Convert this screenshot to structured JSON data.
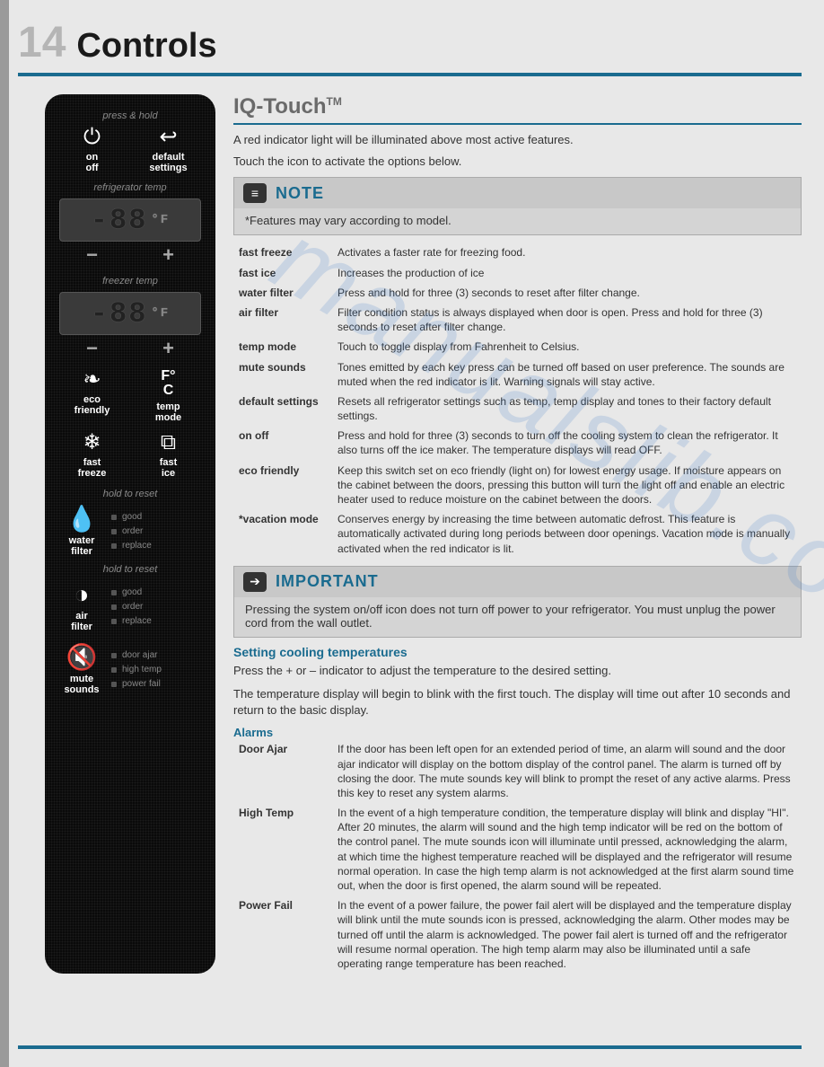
{
  "page": {
    "number": "14",
    "title": "Controls"
  },
  "watermark": "manualslib.com",
  "panel": {
    "press_hold": "press & hold",
    "on_off": "on\noff",
    "default_settings": "default\nsettings",
    "refrig_temp": "refrigerator temp",
    "freezer_temp": "freezer temp",
    "display_value": "-88",
    "display_unit": "°F",
    "eco": "eco\nfriendly",
    "temp_mode": "temp\nmode",
    "fast_freeze": "fast\nfreeze",
    "fast_ice": "fast\nice",
    "hold_reset": "hold to reset",
    "water_filter": "water\nfilter",
    "air_filter": "air\nfilter",
    "mute_sounds": "mute\nsounds",
    "status": {
      "good": "good",
      "order": "order",
      "replace": "replace"
    },
    "alerts": {
      "door_ajar": "door ajar",
      "high_temp": "high temp",
      "power_fail": "power fail"
    }
  },
  "sections": {
    "iq_title": "IQ-Touch",
    "iq_tm": "TM",
    "intro1": "A red indicator light will be illuminated above most active features.",
    "intro2": "Touch the icon to activate the options below.",
    "note": {
      "title": "NOTE",
      "body": "*Features may vary according to model."
    },
    "important": {
      "title": "IMPORTANT",
      "body": "Pressing the system on/off icon does not turn off power to your refrigerator. You must unplug the power cord from the wall outlet."
    },
    "setting_title": "Setting cooling temperatures",
    "setting_p1": "Press the + or – indicator to adjust the temperature to the desired setting.",
    "setting_p2": "The temperature display will begin to blink with the first touch. The display will time out after 10 seconds and return to the basic display.",
    "alarms_title": "Alarms"
  },
  "features": [
    {
      "name": "fast freeze",
      "desc": "Activates a faster rate for freezing food."
    },
    {
      "name": "fast ice",
      "desc": "Increases the production of ice"
    },
    {
      "name": "water filter",
      "desc": "Press and hold for three (3) seconds to reset after filter change."
    },
    {
      "name": "air filter",
      "desc": "Filter condition status is always displayed when door is open. Press and hold for three (3) seconds to reset after filter change."
    },
    {
      "name": "temp mode",
      "desc": "Touch to toggle display from Fahrenheit to Celsius."
    },
    {
      "name": "mute sounds",
      "desc": "Tones emitted by each key press can be turned off based on user preference. The sounds are muted when the red indicator is lit. Warning signals will stay active."
    },
    {
      "name": "default settings",
      "desc": "Resets all refrigerator settings such as temp, temp display and tones to their factory default settings."
    },
    {
      "name": "on off",
      "desc": "Press and hold for three (3) seconds to turn off the cooling system  to clean the refrigerator. It also turns off the ice maker. The temperature displays will read OFF."
    },
    {
      "name": "eco friendly",
      "desc": "Keep this switch set on eco friendly (light on) for lowest energy usage. If moisture appears on the cabinet between the doors, pressing this button will turn the light off and enable an electric heater used to reduce moisture on the cabinet between the doors."
    },
    {
      "name": "*vacation mode",
      "desc": "Conserves energy by increasing the time between automatic defrost. This feature is automatically activated during long periods between door openings. Vacation mode is manually activated when the red indicator is lit."
    }
  ],
  "alarms": [
    {
      "name": "Door Ajar",
      "desc": "If the door has been left open for an extended period of time, an alarm will sound and the door ajar indicator will display on the bottom display of the control panel. The alarm is turned off by closing the door. The mute sounds key will blink to prompt the reset of any active alarms. Press this key to reset any system alarms."
    },
    {
      "name": "High Temp",
      "desc": "In the event of a high temperature condition, the temperature display will blink and display \"HI\".  After 20 minutes, the alarm will sound and the high temp indicator will be red on the bottom of the control panel.  The mute sounds icon will illuminate until pressed, acknowledging the alarm, at which time the highest temperature reached will be displayed and the refrigerator will resume normal operation.  In case the high temp alarm is not acknowledged at the first alarm sound time out, when the door is first opened, the alarm sound will be repeated."
    },
    {
      "name": "Power Fail",
      "desc": "In the event of a power failure, the power fail alert will be displayed and the temperature display will blink until the mute sounds icon is pressed, acknowledging the alarm. Other modes may be turned off until the alarm is acknowledged. The power fail alert is turned off and the refrigerator will resume normal operation. The high temp alarm may also be illuminated until a safe operating range temperature has been reached."
    }
  ],
  "colors": {
    "accent": "#1a6b8f",
    "page_bg": "#e8e8e8",
    "panel_bg": "#0a0a0a"
  }
}
